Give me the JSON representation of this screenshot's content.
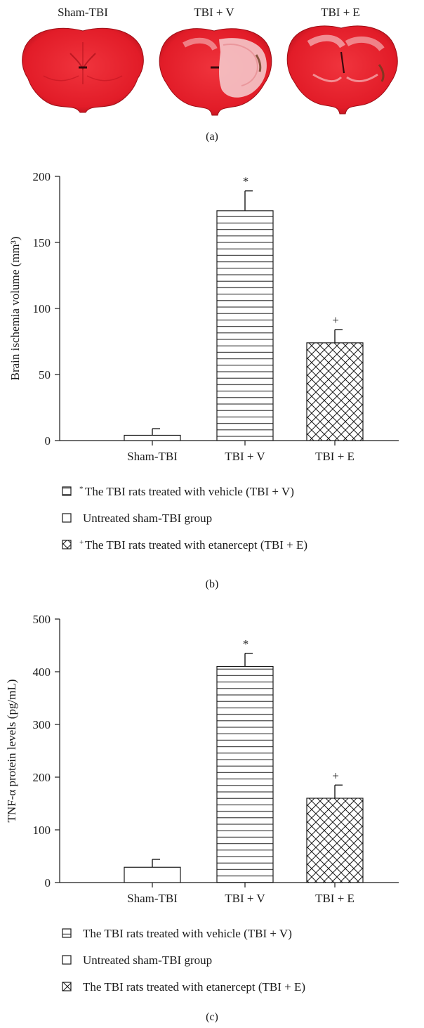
{
  "panel_a": {
    "label": "(a)",
    "groups": [
      "Sham-TBI",
      "TBI + V",
      "TBI + E"
    ],
    "colors": {
      "tissue": "#e8212e",
      "tissue_dark": "#b3121d",
      "pale": "#f4c6c8"
    }
  },
  "chart_data": [
    {
      "type": "bar",
      "panel_label": "(b)",
      "categories": [
        "Sham-TBI",
        "TBI + V",
        "TBI + E"
      ],
      "values": [
        4,
        174,
        74
      ],
      "errors": [
        5,
        15,
        10
      ],
      "significance": [
        "",
        "*",
        "+"
      ],
      "patterns": [
        "none",
        "horizontal",
        "crosshatch"
      ],
      "ylabel": "Brain ischemia volume (mm³)",
      "xlabel": "",
      "ylim": [
        0,
        200
      ],
      "yticks": [
        0,
        50,
        100,
        150,
        200
      ],
      "grid": false,
      "legend_position": "below",
      "legend": [
        {
          "pattern": "horizontal",
          "mark": "*",
          "text": "The TBI rats treated with vehicle (TBI + V)"
        },
        {
          "pattern": "none",
          "mark": "",
          "text": "Untreated sham-TBI group"
        },
        {
          "pattern": "crosshatch",
          "mark": "+",
          "text": "The TBI rats treated with etanercept (TBI + E)"
        }
      ]
    },
    {
      "type": "bar",
      "panel_label": "(c)",
      "categories": [
        "Sham-TBI",
        "TBI + V",
        "TBI + E"
      ],
      "values": [
        29,
        410,
        160
      ],
      "errors": [
        15,
        25,
        25
      ],
      "significance": [
        "",
        "*",
        "+"
      ],
      "patterns": [
        "none",
        "horizontal",
        "crosshatch"
      ],
      "ylabel": "TNF-α protein levels (pg/mL)",
      "xlabel": "",
      "ylim": [
        0,
        500
      ],
      "yticks": [
        0,
        100,
        200,
        300,
        400,
        500
      ],
      "grid": false,
      "legend_position": "below",
      "legend": [
        {
          "pattern": "horizontal",
          "mark": "",
          "text": "The TBI rats treated with vehicle (TBI + V)"
        },
        {
          "pattern": "none",
          "mark": "",
          "text": "Untreated sham-TBI group"
        },
        {
          "pattern": "crosshatch",
          "mark": "",
          "text": "The TBI rats treated with etanercept (TBI + E)"
        }
      ]
    }
  ]
}
